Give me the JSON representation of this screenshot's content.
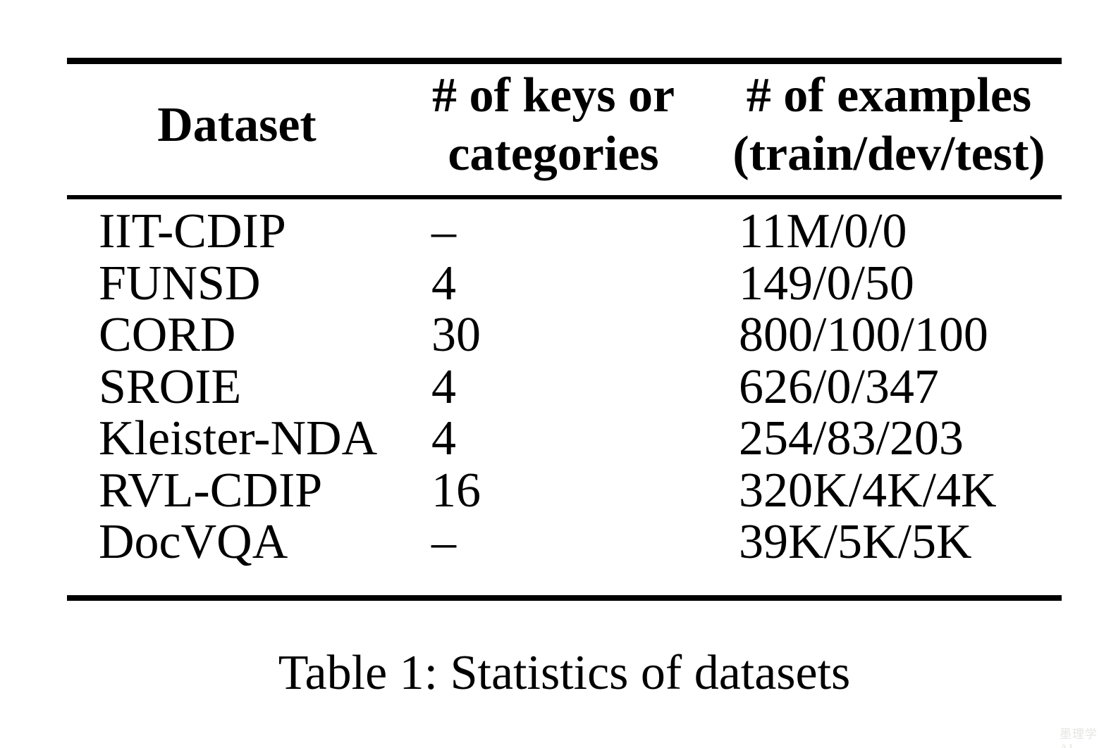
{
  "table": {
    "headers": [
      "Dataset",
      "# of keys or\ncategories",
      "# of examples\n(train/dev/test)"
    ],
    "rows": [
      {
        "dataset": "IIT-CDIP",
        "keys": "–",
        "examples": "11M/0/0"
      },
      {
        "dataset": "FUNSD",
        "keys": "4",
        "examples": "149/0/50"
      },
      {
        "dataset": "CORD",
        "keys": "30",
        "examples": "800/100/100"
      },
      {
        "dataset": "SROIE",
        "keys": "4",
        "examples": "626/0/347"
      },
      {
        "dataset": "Kleister-NDA",
        "keys": "4",
        "examples": "254/83/203"
      },
      {
        "dataset": "RVL-CDIP",
        "keys": "16",
        "examples": "320K/4K/4K"
      },
      {
        "dataset": "DocVQA",
        "keys": "–",
        "examples": "39K/5K/5K"
      }
    ]
  },
  "caption": "Table 1: Statistics of datasets",
  "watermark": "墨理学AI",
  "colors": {
    "text": "#000000",
    "background": "#ffffff",
    "watermark": "#e6e6e3"
  },
  "chart_data": {
    "type": "table",
    "title": "Table 1: Statistics of datasets",
    "columns": [
      "Dataset",
      "# of keys or categories",
      "# of examples (train/dev/test)"
    ],
    "rows": [
      [
        "IIT-CDIP",
        "–",
        "11M/0/0"
      ],
      [
        "FUNSD",
        "4",
        "149/0/50"
      ],
      [
        "CORD",
        "30",
        "800/100/100"
      ],
      [
        "SROIE",
        "4",
        "626/0/347"
      ],
      [
        "Kleister-NDA",
        "4",
        "254/83/203"
      ],
      [
        "RVL-CDIP",
        "16",
        "320K/4K/4K"
      ],
      [
        "DocVQA",
        "–",
        "39K/5K/5K"
      ]
    ]
  }
}
